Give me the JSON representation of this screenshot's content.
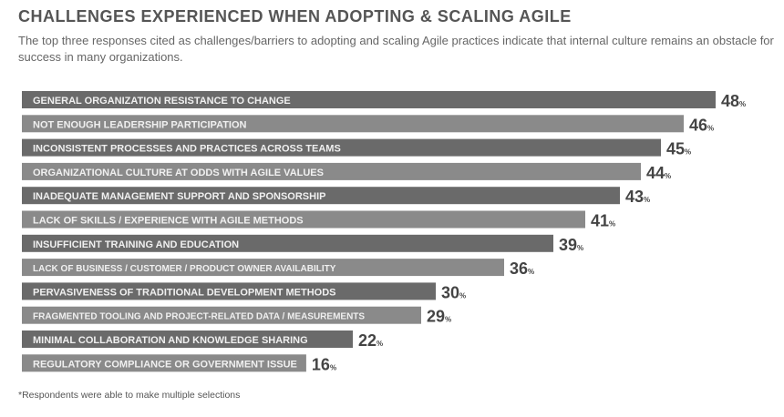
{
  "chart_data": {
    "type": "bar",
    "orientation": "horizontal",
    "title": "CHALLENGES EXPERIENCED WHEN ADOPTING & SCALING AGILE",
    "subtitle": "The top three responses cited as challenges/barriers to adopting and scaling Agile practices indicate that internal culture remains an obstacle for success in many organizations.",
    "categories": [
      "GENERAL ORGANIZATION RESISTANCE TO CHANGE",
      "NOT ENOUGH LEADERSHIP PARTICIPATION",
      "INCONSISTENT PROCESSES AND PRACTICES ACROSS TEAMS",
      "ORGANIZATIONAL CULTURE AT ODDS WITH AGILE VALUES",
      "INADEQUATE MANAGEMENT SUPPORT AND SPONSORSHIP",
      "LACK OF SKILLS / EXPERIENCE WITH AGILE METHODS",
      "INSUFFICIENT TRAINING AND EDUCATION",
      "LACK OF BUSINESS / CUSTOMER / PRODUCT OWNER AVAILABILITY",
      "PERVASIVENESS OF TRADITIONAL DEVELOPMENT METHODS",
      "FRAGMENTED TOOLING AND PROJECT-RELATED DATA / MEASUREMENTS",
      "MINIMAL COLLABORATION AND KNOWLEDGE SHARING",
      "REGULATORY COMPLIANCE OR GOVERNMENT ISSUE"
    ],
    "values": [
      48,
      46,
      45,
      44,
      43,
      41,
      39,
      36,
      30,
      29,
      22,
      16
    ],
    "unit": "%",
    "colors": {
      "dark": "#6a6a6a",
      "light": "#8a8a8a",
      "label": "#f0f0f0",
      "value": "#444444"
    },
    "footnote": "*Respondents were able to make multiple selections"
  }
}
